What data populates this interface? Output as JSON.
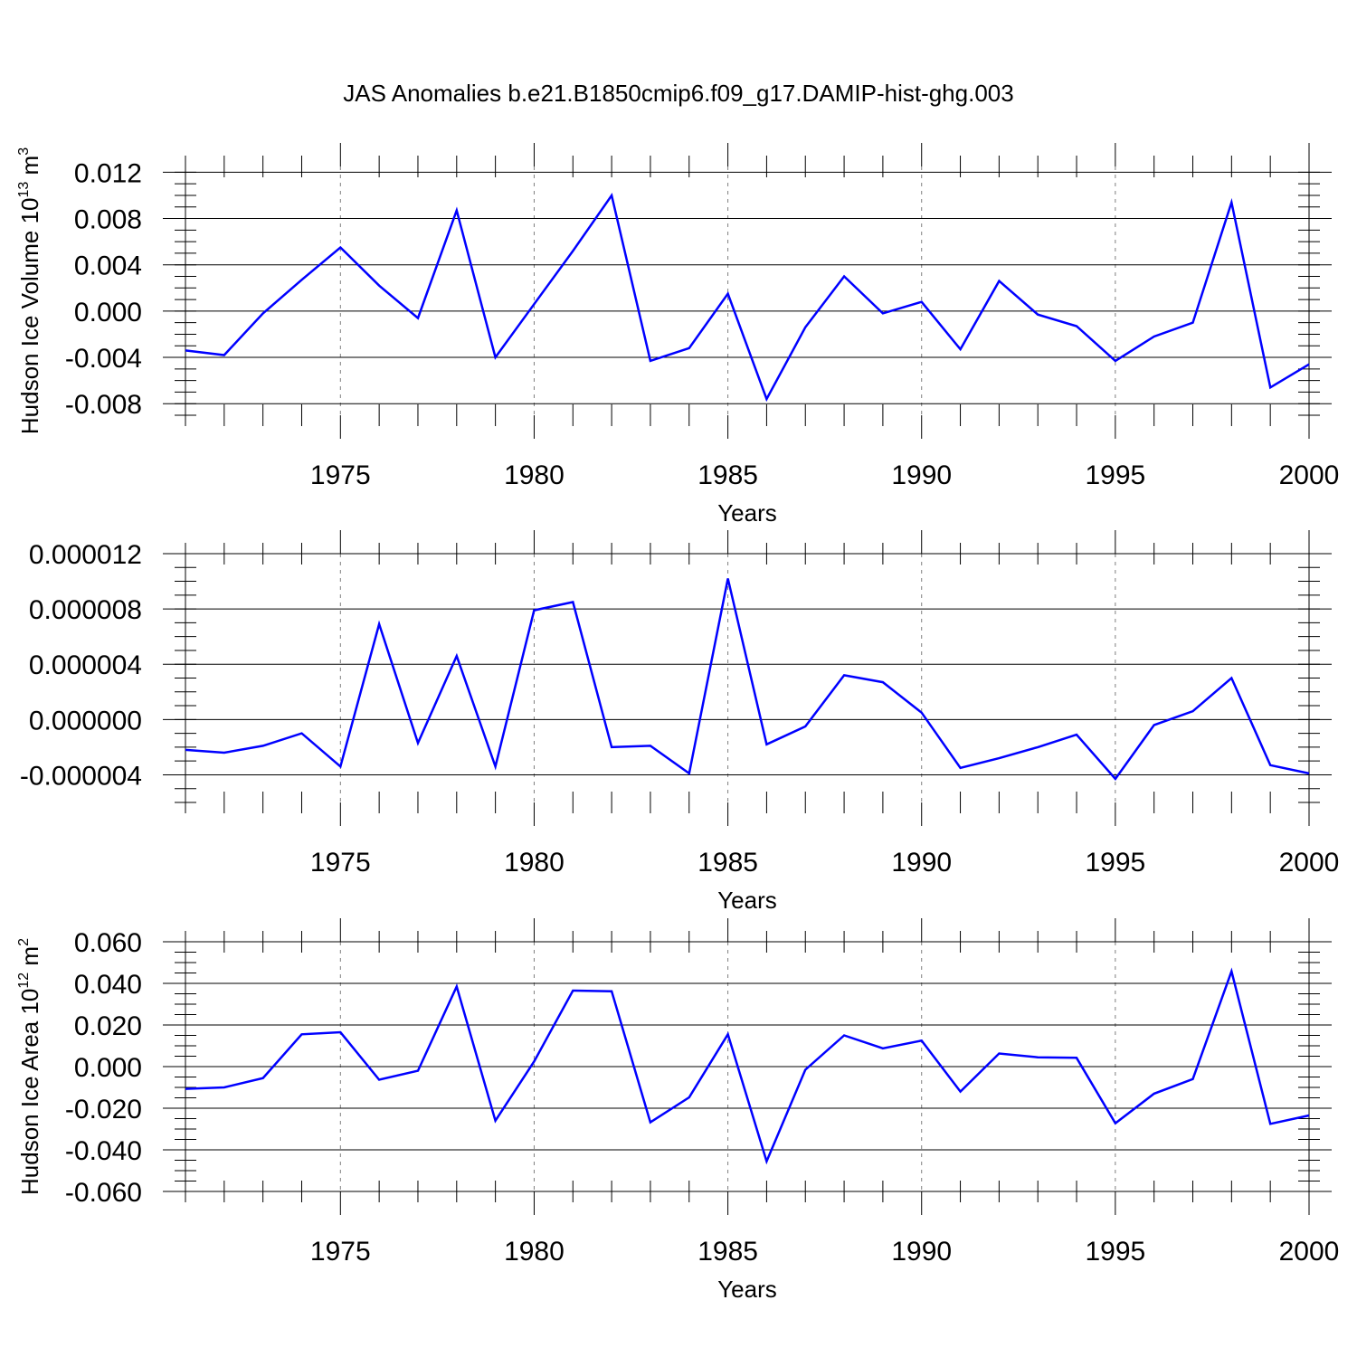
{
  "title": "JAS Anomalies b.e21.B1850cmip6.f09_g17.DAMIP-hist-ghg.003",
  "colors": {
    "line": "#0000ff",
    "axis": "#000000",
    "grid": "#7f7f7f"
  },
  "chart_data": [
    {
      "type": "line",
      "ylabel_main": "Hudson Ice Volume 10",
      "ylabel_exp": "13",
      "ylabel_unit": " m",
      "ylabel_unit_exp": "3",
      "xlabel": "Years",
      "xlim": [
        1971,
        2000
      ],
      "ylim": [
        -0.009,
        0.0125
      ],
      "yticks": [
        0.012,
        0.008,
        0.004,
        0.0,
        -0.004,
        -0.008
      ],
      "ytick_labels": [
        "0.012",
        "0.008",
        "0.004",
        "0.000",
        "-0.004",
        "-0.008"
      ],
      "yminor_step": 0.001,
      "xticks": [
        1975,
        1980,
        1985,
        1990,
        1995,
        2000
      ],
      "xtick_labels": [
        "1975",
        "1980",
        "1985",
        "1990",
        "1995",
        "2000"
      ],
      "x": [
        1971,
        1972,
        1973,
        1974,
        1975,
        1976,
        1977,
        1978,
        1979,
        1980,
        1981,
        1982,
        1983,
        1984,
        1985,
        1986,
        1987,
        1988,
        1989,
        1990,
        1991,
        1992,
        1993,
        1994,
        1995,
        1996,
        1997,
        1998,
        1999,
        2000
      ],
      "values": [
        -0.0034,
        -0.0038,
        -0.0002,
        0.0027,
        0.0055,
        0.0022,
        -0.0006,
        0.0087,
        -0.004,
        0.0006,
        0.0052,
        0.01,
        -0.0043,
        -0.0032,
        0.0015,
        -0.0076,
        -0.0014,
        0.003,
        -0.0002,
        0.0008,
        -0.0033,
        0.0026,
        -0.0003,
        -0.0013,
        -0.0043,
        -0.0022,
        -0.001,
        0.0094,
        -0.0066,
        -0.0046
      ]
    },
    {
      "type": "line",
      "ylabel_main": "",
      "ylabel_exp": "",
      "ylabel_unit": "",
      "ylabel_unit_exp": "",
      "xlabel": "Years",
      "xlim": [
        1971,
        2000
      ],
      "ylim": [
        -6e-06,
        1.2e-05
      ],
      "yticks": [
        1.2e-05,
        8e-06,
        4e-06,
        0.0,
        -4e-06
      ],
      "ytick_labels": [
        "0.000012",
        "0.000008",
        "0.000004",
        "0.000000",
        "-0.000004"
      ],
      "yminor_step": 1e-06,
      "xticks": [
        1975,
        1980,
        1985,
        1990,
        1995,
        2000
      ],
      "xtick_labels": [
        "1975",
        "1980",
        "1985",
        "1990",
        "1995",
        "2000"
      ],
      "x": [
        1971,
        1972,
        1973,
        1974,
        1975,
        1976,
        1977,
        1978,
        1979,
        1980,
        1981,
        1982,
        1983,
        1984,
        1985,
        1986,
        1987,
        1988,
        1989,
        1990,
        1991,
        1992,
        1993,
        1994,
        1995,
        1996,
        1997,
        1998,
        1999,
        2000
      ],
      "values": [
        -2.2e-06,
        -2.4e-06,
        -1.9e-06,
        -1e-06,
        -3.4e-06,
        6.9e-06,
        -1.7e-06,
        4.6e-06,
        -3.4e-06,
        7.9e-06,
        8.5e-06,
        -2e-06,
        -1.9e-06,
        -3.9e-06,
        1.02e-05,
        -1.8e-06,
        -5e-07,
        3.2e-06,
        2.7e-06,
        5e-07,
        -3.5e-06,
        -2.8e-06,
        -2e-06,
        -1.1e-06,
        -4.3e-06,
        -4e-07,
        6e-07,
        3e-06,
        -3.3e-06,
        -3.9e-06
      ]
    },
    {
      "type": "line",
      "ylabel_main": "Hudson Ice Area 10",
      "ylabel_exp": "12",
      "ylabel_unit": " m",
      "ylabel_unit_exp": "2",
      "xlabel": "Years",
      "xlim": [
        1971,
        2000
      ],
      "ylim": [
        -0.06,
        0.06
      ],
      "yticks": [
        0.06,
        0.04,
        0.02,
        0.0,
        -0.02,
        -0.04,
        -0.06
      ],
      "ytick_labels": [
        "0.060",
        "0.040",
        "0.020",
        "0.000",
        "-0.020",
        "-0.040",
        "-0.060"
      ],
      "yminor_step": 0.005,
      "xticks": [
        1975,
        1980,
        1985,
        1990,
        1995,
        2000
      ],
      "xtick_labels": [
        "1975",
        "1980",
        "1985",
        "1990",
        "1995",
        "2000"
      ],
      "x": [
        1971,
        1972,
        1973,
        1974,
        1975,
        1976,
        1977,
        1978,
        1979,
        1980,
        1981,
        1982,
        1983,
        1984,
        1985,
        1986,
        1987,
        1988,
        1989,
        1990,
        1991,
        1992,
        1993,
        1994,
        1995,
        1996,
        1997,
        1998,
        1999,
        2000
      ],
      "values": [
        -0.0107,
        -0.01,
        -0.0055,
        0.0155,
        0.0165,
        -0.0063,
        -0.002,
        0.0385,
        -0.026,
        0.0025,
        0.0365,
        0.0362,
        -0.0268,
        -0.0148,
        0.0155,
        -0.0455,
        -0.0015,
        0.015,
        0.0088,
        0.0125,
        -0.012,
        0.0063,
        0.0045,
        0.0042,
        -0.0272,
        -0.013,
        -0.006,
        0.0458,
        -0.0275,
        -0.0235
      ]
    }
  ]
}
